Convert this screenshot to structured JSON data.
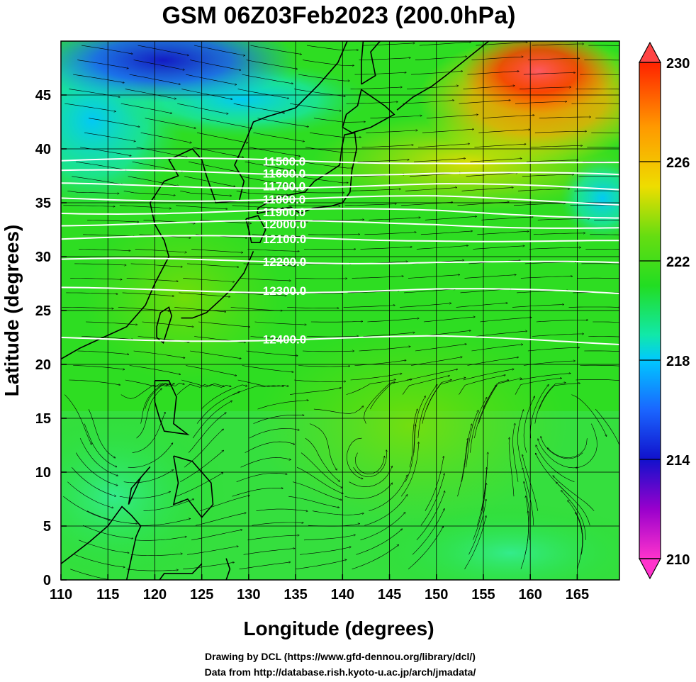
{
  "chart_data": {
    "type": "heatmap",
    "title": "GSM 06Z03Feb2023 (200.0hPa)",
    "xlabel": "Longitude (degrees)",
    "ylabel": "Latitude  (degrees)",
    "xlim": [
      110,
      169.5
    ],
    "ylim": [
      0,
      50
    ],
    "xticks": [
      110,
      115,
      120,
      125,
      130,
      135,
      140,
      145,
      150,
      155,
      160,
      165
    ],
    "yticks": [
      0,
      5,
      10,
      15,
      20,
      25,
      30,
      35,
      40,
      45
    ],
    "colorbar": {
      "min": 210,
      "max": 230,
      "ticks": [
        230,
        226,
        222,
        218,
        214,
        210
      ],
      "colors": [
        "#ff33cc",
        "#9900cc",
        "#1111cc",
        "#1a66ff",
        "#00c8ff",
        "#11e8aa",
        "#22dd22",
        "#99dd11",
        "#eedd00",
        "#ff9900",
        "#ff2200"
      ]
    },
    "contours": [
      {
        "label": "11500.0",
        "lat": 38.9
      },
      {
        "label": "11600.0",
        "lat": 37.8
      },
      {
        "label": "11700.0",
        "lat": 36.6
      },
      {
        "label": "11800.0",
        "lat": 35.4
      },
      {
        "label": "11900.0",
        "lat": 34.2
      },
      {
        "label": "12000.0",
        "lat": 33.1
      },
      {
        "label": "12100.0",
        "lat": 31.7
      },
      {
        "label": "12200.0",
        "lat": 29.6
      },
      {
        "label": "12300.0",
        "lat": 26.9
      },
      {
        "label": "12400.0",
        "lat": 22.4
      }
    ],
    "credits": [
      "Drawing by DCL (https://www.gfd-dennou.org/library/dcl/)",
      "Data from http://database.rish.kyoto-u.ac.jp/arch/jmadata/"
    ]
  }
}
